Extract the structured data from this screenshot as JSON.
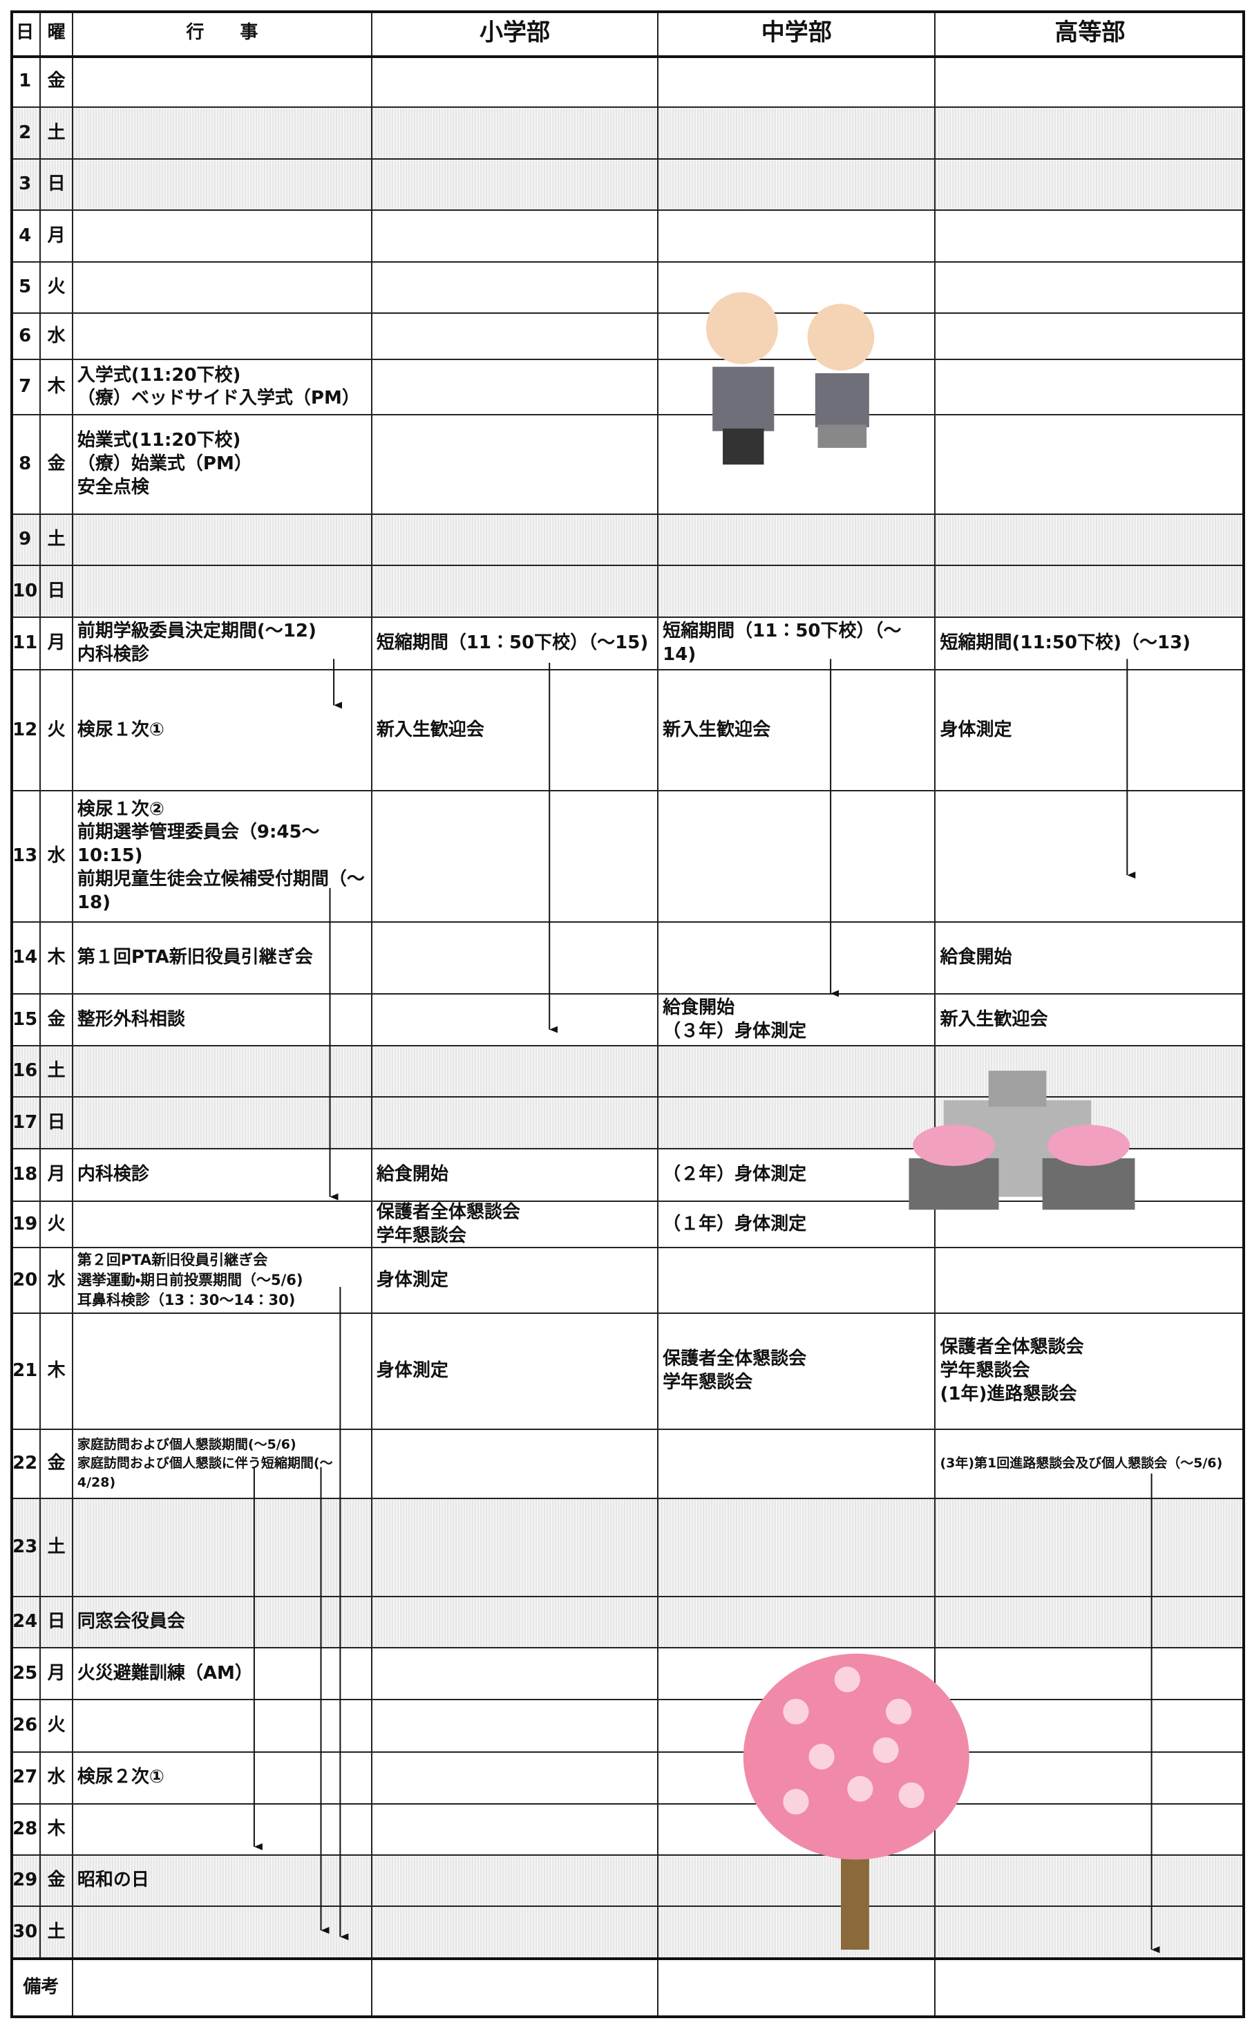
{
  "header": {
    "columns": [
      "日",
      "曜",
      "行　　事",
      "小学部",
      "中学部",
      "高等部"
    ]
  },
  "rows": [
    {
      "day": 1,
      "weekday": "金"
    },
    {
      "day": 2,
      "weekday": "土"
    },
    {
      "day": 3,
      "weekday": "日"
    },
    {
      "day": 4,
      "weekday": "月"
    },
    {
      "day": 5,
      "weekday": "火"
    },
    {
      "day": 6,
      "weekday": "水"
    },
    {
      "day": 7,
      "weekday": "木",
      "events": "入学式(11:20下校)\n（療）ベッドサイド入学式（PM）"
    },
    {
      "day": 8,
      "weekday": "金",
      "events": "始業式(11:20下校)\n（療）始業式（PM）\n安全点検"
    },
    {
      "day": 9,
      "weekday": "土"
    },
    {
      "day": 10,
      "weekday": "日"
    },
    {
      "day": 11,
      "weekday": "月",
      "events": "前期学級委員決定期間(～12)\n内科検診",
      "elementary": "短縮期間（11：50下校）（～15)",
      "middle": "短縮期間（11：50下校）（～14)",
      "high": "短縮期間(11:50下校)（～13)"
    },
    {
      "day": 12,
      "weekday": "火",
      "events": "検尿１次①",
      "elementary": "新入生歓迎会",
      "middle": "新入生歓迎会",
      "high": "身体測定"
    },
    {
      "day": 13,
      "weekday": "水",
      "events": "検尿１次②\n前期選挙管理委員会（9:45～10:15)\n前期児童生徒会立候補受付期間（～18)"
    },
    {
      "day": 14,
      "weekday": "木",
      "events": "第１回PTA新旧役員引継ぎ会",
      "high": "給食開始"
    },
    {
      "day": 15,
      "weekday": "金",
      "events": "整形外科相談",
      "middle": "給食開始\n（３年）身体測定",
      "high": "新入生歓迎会"
    },
    {
      "day": 16,
      "weekday": "土"
    },
    {
      "day": 17,
      "weekday": "日"
    },
    {
      "day": 18,
      "weekday": "月",
      "events": "内科検診",
      "elementary": "給食開始",
      "middle": "（２年）身体測定"
    },
    {
      "day": 19,
      "weekday": "火",
      "elementary": "保護者全体懇談会\n学年懇談会",
      "middle": "（１年）身体測定"
    },
    {
      "day": 20,
      "weekday": "水",
      "events": "第２回PTA新旧役員引継ぎ会\n選挙運動・期日前投票期間（～5/6)\n耳鼻科検診（13：30～14：30)",
      "elementary": "身体測定"
    },
    {
      "day": 21,
      "weekday": "木",
      "elementary": "身体測定",
      "middle": "保護者全体懇談会\n学年懇談会",
      "high": "保護者全体懇談会\n学年懇談会\n(1年)進路懇談会"
    },
    {
      "day": 22,
      "weekday": "金",
      "events": "家庭訪問および個人懇談期間(～5/6)\n家庭訪問および個人懇談に伴う短縮期間(～4/28)",
      "high": "(3年)第1回進路懇談会及び個人懇談会（～5/6)"
    },
    {
      "day": 23,
      "weekday": "土"
    },
    {
      "day": 24,
      "weekday": "日",
      "events": "同窓会役員会"
    },
    {
      "day": 25,
      "weekday": "月",
      "events": "火災避難訓練（AM）"
    },
    {
      "day": 26,
      "weekday": "火"
    },
    {
      "day": 27,
      "weekday": "水",
      "events": "検尿２次①"
    },
    {
      "day": 28,
      "weekday": "木"
    },
    {
      "day": 29,
      "weekday": "金",
      "events": "昭和の日"
    },
    {
      "day": 30,
      "weekday": "土"
    }
  ],
  "notes": {
    "label": "備考"
  }
}
